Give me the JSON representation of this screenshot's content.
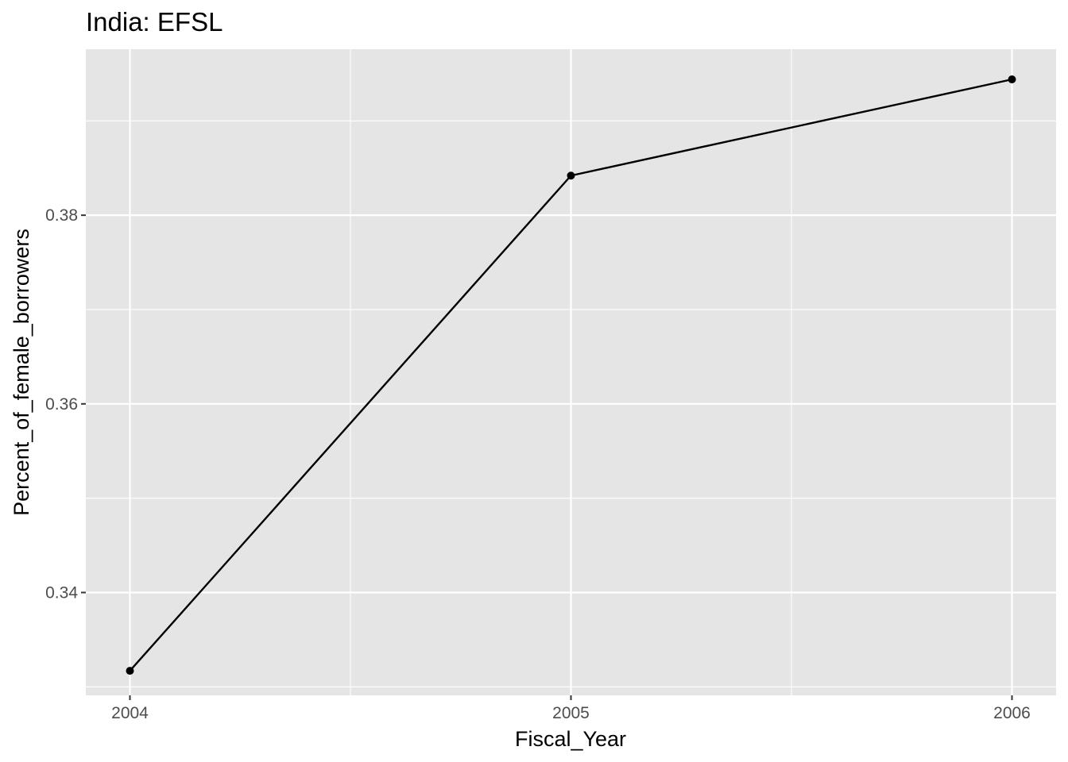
{
  "chart_data": {
    "type": "line",
    "title": "India:  EFSL",
    "xlabel": "Fiscal_Year",
    "ylabel": "Percent_of_female_borrowers",
    "x": [
      2004,
      2005,
      2006
    ],
    "y": [
      0.3317,
      0.3842,
      0.3944
    ],
    "x_ticks": [
      2004,
      2005,
      2006
    ],
    "x_tick_labels": [
      "2004",
      "2005",
      "2006"
    ],
    "y_ticks": [
      0.34,
      0.36,
      0.38
    ],
    "y_tick_labels": [
      "0.34",
      "0.36",
      "0.38"
    ],
    "xlim": [
      2003.9,
      2006.1
    ],
    "ylim": [
      0.3291,
      0.3976
    ],
    "grid": true,
    "panel_background": "#e5e5e5",
    "grid_color": "#ffffff",
    "line_color": "#000000",
    "point_color": "#000000",
    "tick_label_color": "#4d4d4d",
    "tick_color": "#333333"
  }
}
